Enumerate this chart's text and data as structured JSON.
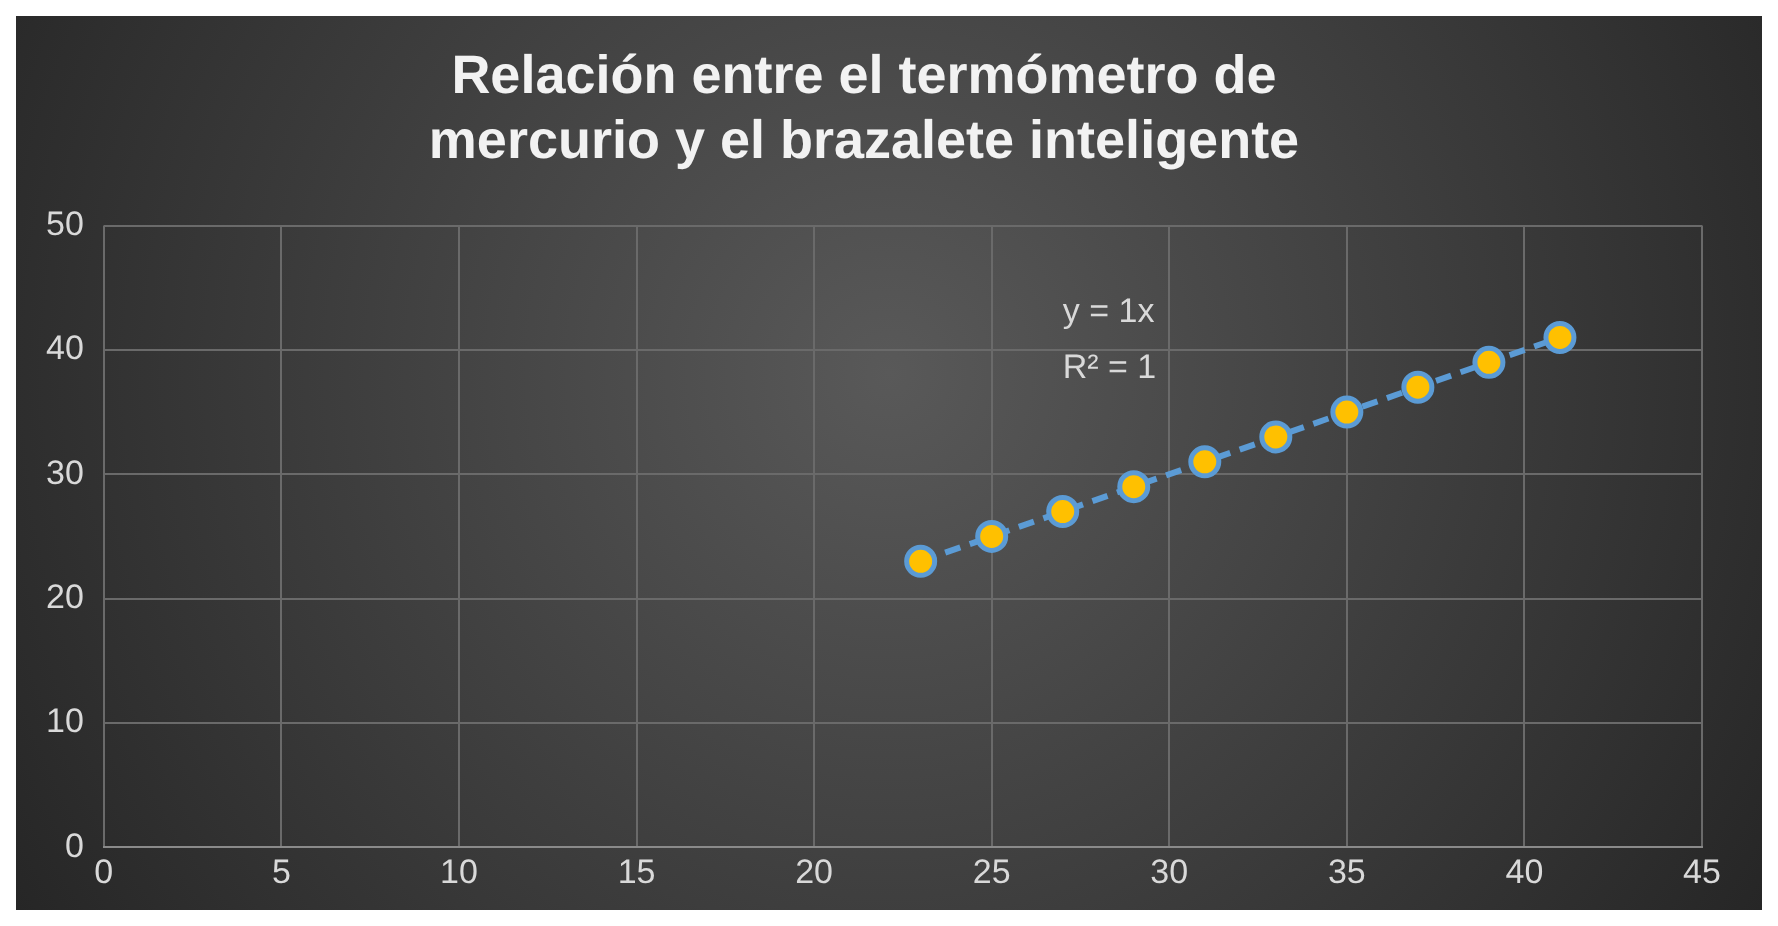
{
  "chart_data": {
    "type": "scatter",
    "title": "Relación entre el termómetro de mercurio y el brazalete inteligente",
    "series": [
      {
        "color": "#ffc000",
        "x": [
          23,
          25,
          27,
          29,
          31,
          33,
          35,
          37,
          39,
          41
        ],
        "values": [
          23,
          25,
          27,
          29,
          31,
          33,
          35,
          37,
          39,
          41
        ]
      },
      {
        "type": "line",
        "color": "#5b9bd5",
        "line_style": "dashed",
        "marker": "none",
        "x": [
          23,
          41
        ],
        "values": [
          23,
          41
        ]
      }
    ],
    "annotations": [
      "y = 1x",
      "R² = 1"
    ],
    "xlim": [
      0,
      45
    ],
    "xticks": [
      0,
      5,
      10,
      15,
      20,
      25,
      30,
      35,
      40,
      45
    ],
    "ylim": [
      0,
      50
    ],
    "yticks": [
      0,
      10,
      20,
      30,
      40,
      50
    ],
    "grid": true,
    "legend": false,
    "marker": "circle"
  }
}
